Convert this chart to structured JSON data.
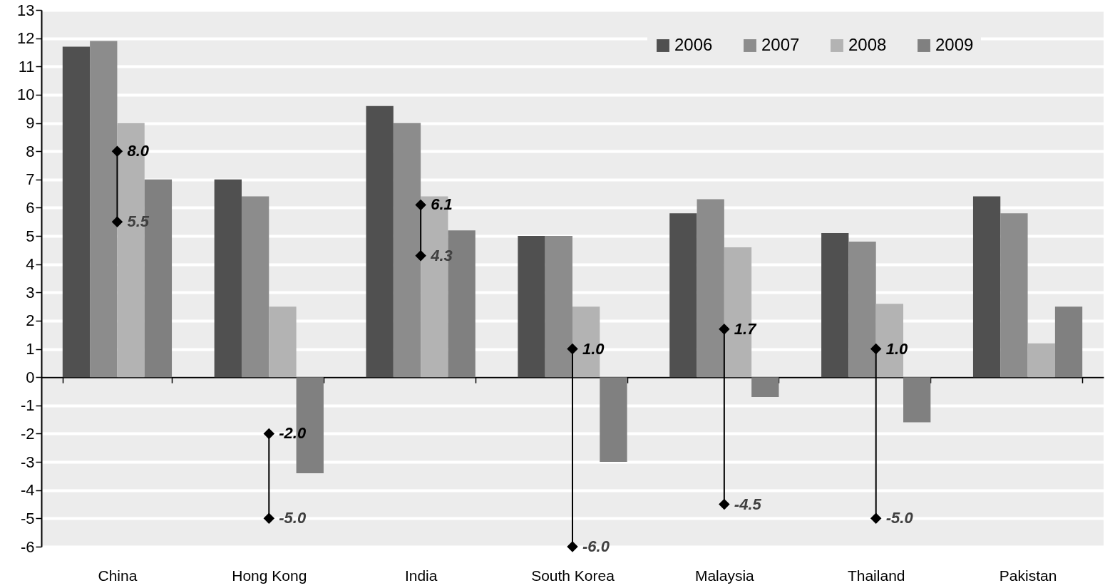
{
  "chart_data": {
    "type": "bar",
    "categories": [
      "China",
      "Hong Kong",
      "India",
      "South Korea",
      "Malaysia",
      "Thailand",
      "Pakistan"
    ],
    "series": [
      {
        "name": "2006",
        "color": "#505050",
        "values": [
          11.7,
          7.0,
          9.6,
          5.0,
          5.8,
          5.1,
          6.4
        ]
      },
      {
        "name": "2007",
        "color": "#8c8c8c",
        "values": [
          11.9,
          6.4,
          9.0,
          5.0,
          6.3,
          4.8,
          5.8
        ]
      },
      {
        "name": "2008",
        "color": "#b3b3b3",
        "values": [
          9.0,
          2.5,
          6.4,
          2.5,
          4.6,
          2.6,
          1.2
        ]
      },
      {
        "name": "2009",
        "color": "#808080",
        "values": [
          7.0,
          -3.4,
          5.2,
          -3.0,
          -0.7,
          -1.6,
          2.5
        ]
      },
      {
        "type": "scatter",
        "color": "#000000",
        "marker": "diamond",
        "x": [
          "China",
          "Hong Kong",
          "India",
          "South Korea",
          "Malaysia",
          "Thailand"
        ],
        "values": [
          8.0,
          -2.0,
          6.1,
          1.0,
          1.7,
          1.0
        ]
      },
      {
        "type": "scatter",
        "color": "#000000",
        "marker": "diamond",
        "x": [
          "China",
          "Hong Kong",
          "India",
          "South Korea",
          "Malaysia",
          "Thailand"
        ],
        "values": [
          5.5,
          -5.0,
          4.3,
          -6.0,
          -4.5,
          -5.0
        ]
      }
    ],
    "ylim": [
      -6,
      13
    ],
    "yticks": [
      -6,
      -5,
      -4,
      -3,
      -2,
      -1,
      0,
      1,
      2,
      3,
      4,
      5,
      6,
      7,
      8,
      9,
      10,
      11,
      12,
      13
    ],
    "grid": "y",
    "legend": "top right",
    "annotations": [
      {
        "text": "8.0",
        "x": "China",
        "y": 8.0
      },
      {
        "text": "5.5",
        "x": "China",
        "y": 5.5
      },
      {
        "text": "-2.0",
        "x": "Hong Kong",
        "y": -2.0
      },
      {
        "text": "-5.0",
        "x": "Hong Kong",
        "y": -5.0
      },
      {
        "text": "6.1",
        "x": "India",
        "y": 6.1
      },
      {
        "text": "4.3",
        "x": "India",
        "y": 4.3
      },
      {
        "text": "1.0",
        "x": "South Korea",
        "y": 1.0
      },
      {
        "text": "-6.0",
        "x": "South Korea",
        "y": -6.0
      },
      {
        "text": "1.7",
        "x": "Malaysia",
        "y": 1.7
      },
      {
        "text": "-4.5",
        "x": "Malaysia",
        "y": -4.5
      },
      {
        "text": "1.0",
        "x": "Thailand",
        "y": 1.0
      },
      {
        "text": "-5.0",
        "x": "Thailand",
        "y": -5.0
      }
    ]
  }
}
